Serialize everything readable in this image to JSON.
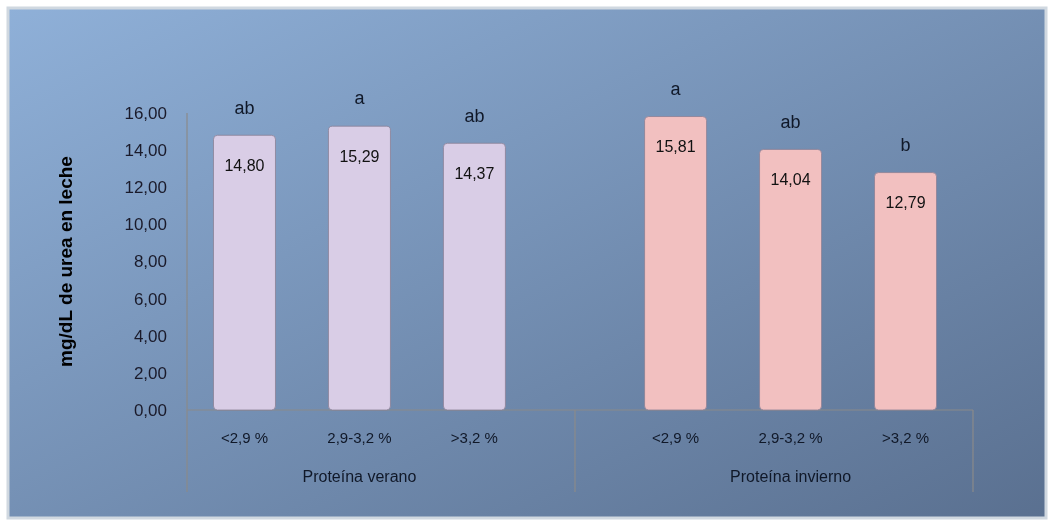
{
  "chart_data": {
    "type": "bar",
    "ylabel": "mg/dL de urea en leche",
    "categories": [
      "<2,9 %",
      "2,9-3,2 %",
      ">3,2 %",
      "<2,9 %",
      "2,9-3,2 %",
      ">3,2 %"
    ],
    "values": [
      14.8,
      15.29,
      14.37,
      15.81,
      14.04,
      12.79
    ],
    "value_labels": [
      "14,80",
      "15,29",
      "14,37",
      "15,81",
      "14,04",
      "12,79"
    ],
    "colors": [
      "#d9cde6",
      "#d9cde6",
      "#d9cde6",
      "#f2c0c0",
      "#f2c0c0",
      "#f2c0c0"
    ],
    "ylim": [
      0,
      16
    ],
    "yticks": [
      {
        "value": 0,
        "label": "0,00"
      },
      {
        "value": 2,
        "label": "2,00"
      },
      {
        "value": 4,
        "label": "4,00"
      },
      {
        "value": 6,
        "label": "6,00"
      },
      {
        "value": 8,
        "label": "8,00"
      },
      {
        "value": 10,
        "label": "10,00"
      },
      {
        "value": 12,
        "label": "12,00"
      },
      {
        "value": 14,
        "label": "14,00"
      },
      {
        "value": 16,
        "label": "16,00"
      }
    ],
    "grid": false,
    "annotations": [
      "ab",
      "a",
      "ab",
      "a",
      "ab",
      "b",
      "Proteína verano",
      "Proteína invierno"
    ]
  }
}
